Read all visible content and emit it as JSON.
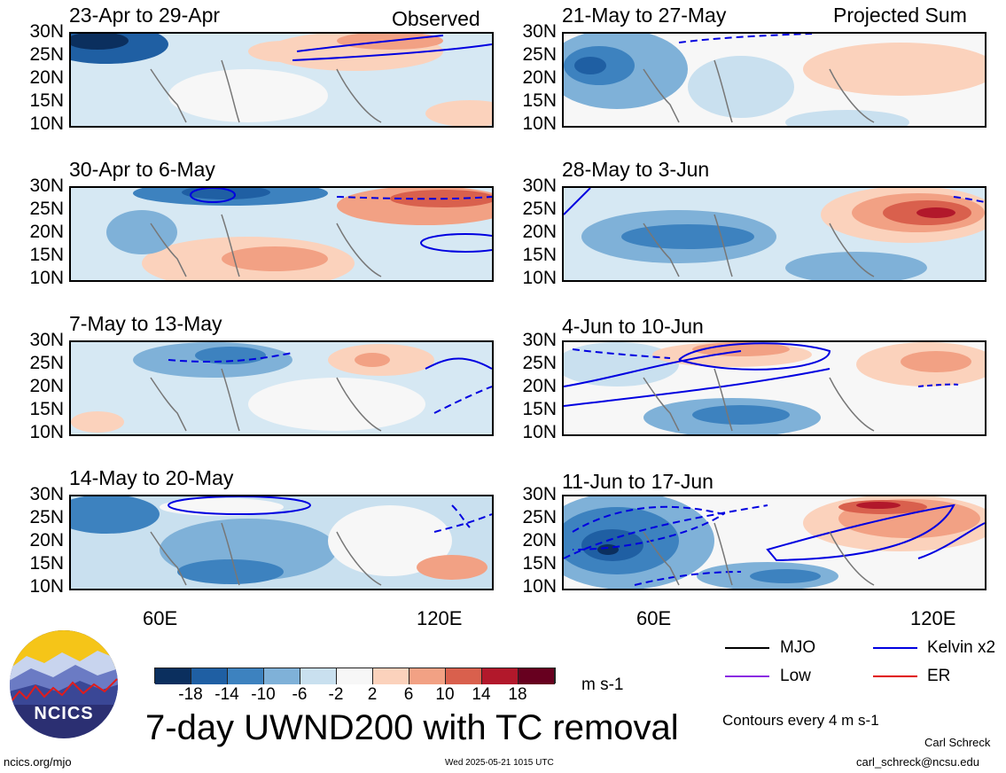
{
  "panels": {
    "left_header": "Observed",
    "right_header": "Projected Sum",
    "left": [
      {
        "title": "23-Apr to 29-Apr"
      },
      {
        "title": "30-Apr to 6-May"
      },
      {
        "title": "7-May to 13-May"
      },
      {
        "title": "14-May to 20-May"
      }
    ],
    "right": [
      {
        "title": "21-May to 27-May"
      },
      {
        "title": "28-May to 3-Jun"
      },
      {
        "title": "4-Jun to 10-Jun"
      },
      {
        "title": "11-Jun to 17-Jun"
      }
    ]
  },
  "axes": {
    "lat_labels": [
      "30N",
      "25N",
      "20N",
      "15N",
      "10N"
    ],
    "lon_labels": [
      "60E",
      "120E"
    ]
  },
  "colorbar": {
    "labels": [
      "-18",
      "-14",
      "-10",
      "-6",
      "-2",
      "2",
      "6",
      "10",
      "14",
      "18"
    ],
    "colors": [
      "#0b2f5e",
      "#1f5fa3",
      "#3d82bf",
      "#7fb1d8",
      "#c9e0ef",
      "#f7f7f7",
      "#fbd2bc",
      "#f2a184",
      "#d9604d",
      "#b2182b",
      "#67001f"
    ],
    "units": "m s-1"
  },
  "legend": {
    "items": [
      {
        "label": "MJO",
        "color": "#000000"
      },
      {
        "label": "Kelvin x2",
        "color": "#0000e0"
      },
      {
        "label": "Low",
        "color": "#8a2be2"
      },
      {
        "label": "ER",
        "color": "#e00000"
      }
    ],
    "contour_note": "Contours every 4 m s-1"
  },
  "main_title": "7-day UWND200 with TC removal",
  "logo": {
    "text": "NCICS"
  },
  "footer": {
    "url": "ncics.org/mjo",
    "timestamp": "Wed 2025-05-21 1015 UTC",
    "author": "Carl Schreck",
    "email": "carl_schreck@ncsu.edu"
  }
}
